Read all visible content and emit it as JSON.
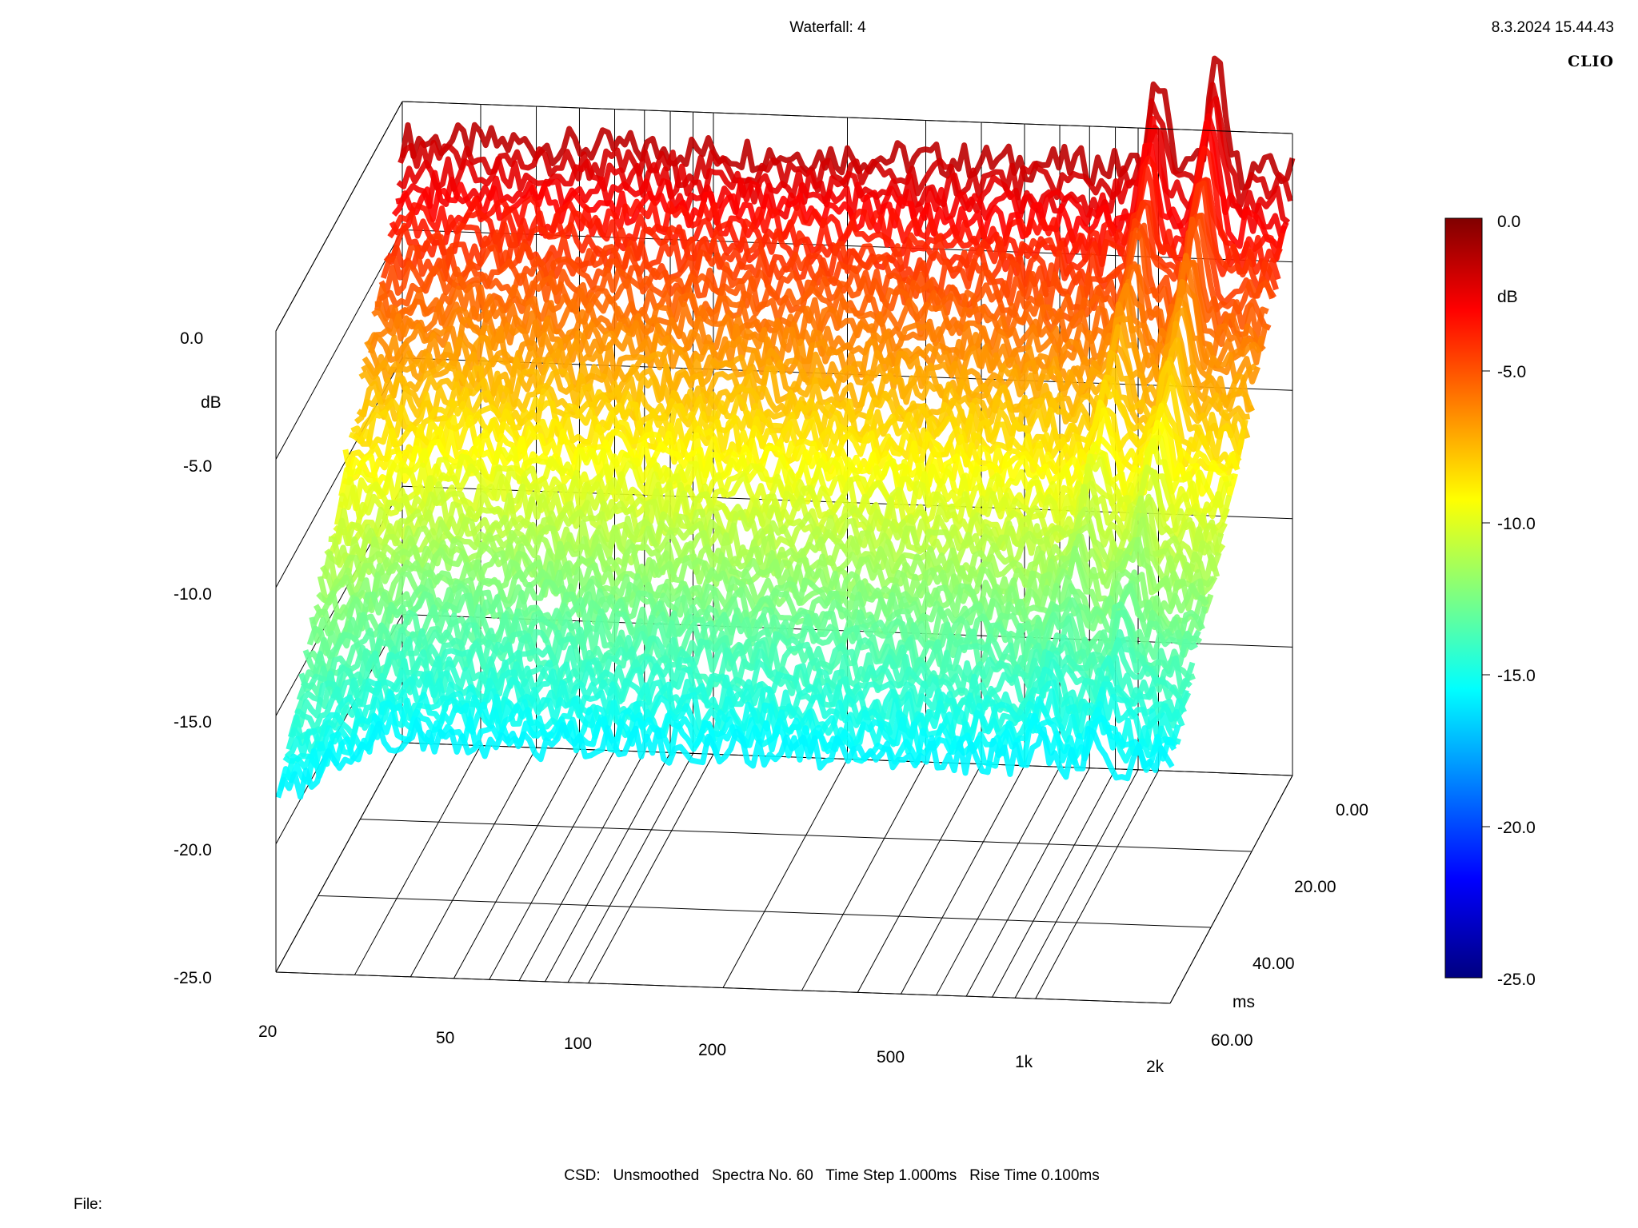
{
  "header": {
    "title": "Waterfall: 4",
    "datetime": "8.3.2024 15.44.43",
    "brand": "CLIO"
  },
  "footer": {
    "params": "CSD:   Unsmoothed   Spectra No. 60   Time Step 1.000ms   Rise Time 0.100ms",
    "file_label": "File:"
  },
  "chart_data": {
    "type": "waterfall",
    "title": "Waterfall: 4",
    "x_axis": {
      "label": "",
      "scale": "log",
      "range": [
        20,
        2000
      ],
      "ticks": [
        "20",
        "50",
        "100",
        "200",
        "500",
        "1k",
        "2k"
      ],
      "tick_values": [
        20,
        50,
        100,
        200,
        500,
        1000,
        2000
      ]
    },
    "y_axis": {
      "label": "dB",
      "range": [
        -25,
        0
      ],
      "ticks": [
        "0.0",
        "-5.0",
        "-10.0",
        "-15.0",
        "-20.0",
        "-25.0"
      ]
    },
    "z_axis": {
      "label": "ms",
      "range": [
        0,
        60
      ],
      "ticks": [
        "0.00",
        "20.00",
        "40.00",
        "60.00"
      ]
    },
    "colorbar": {
      "label": "dB",
      "range": [
        -25,
        0
      ],
      "ticks": [
        "0.0",
        "-5.0",
        "-10.0",
        "-15.0",
        "-20.0",
        "-25.0"
      ],
      "colormap": "jet"
    },
    "spectra_count": 60,
    "time_step_ms": 1.0,
    "rise_time_ms": 0.1,
    "series_summary": [
      {
        "time_ms": 0,
        "level_db_approx": -1.5,
        "note": "first spectrum, roughly flat"
      },
      {
        "time_ms": 0,
        "peak_freq_hz": 1000,
        "peak_db": 2.0
      },
      {
        "time_ms": 0,
        "peak_freq_hz": 1350,
        "peak_db": 2.5
      },
      {
        "time_ms": 60,
        "level_db_approx": -16,
        "note": "decayed spectra"
      }
    ]
  }
}
